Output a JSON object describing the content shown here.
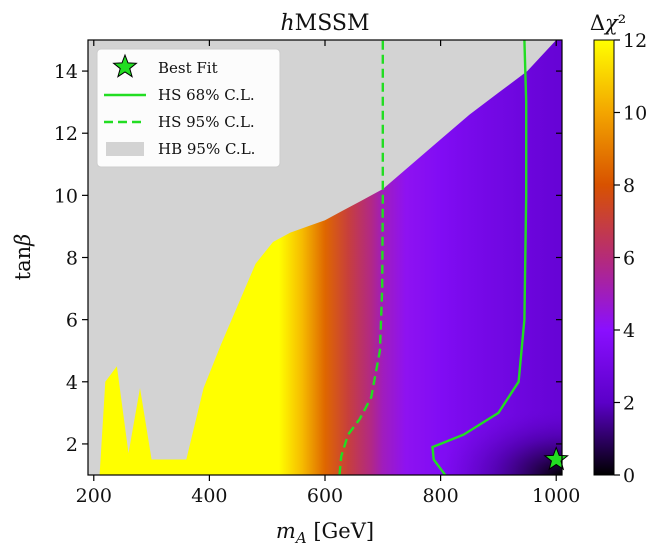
{
  "chart_data": {
    "type": "heatmap",
    "title": "hMSSM",
    "xlabel": "m_A [GeV]",
    "ylabel": "tanβ",
    "xlim": [
      190,
      1010
    ],
    "ylim": [
      1,
      15
    ],
    "x_ticks": [
      200,
      400,
      600,
      800,
      1000
    ],
    "y_ticks": [
      2,
      4,
      6,
      8,
      10,
      12,
      14
    ],
    "grid": false,
    "colorbar": {
      "label": "Δχ²",
      "range": [
        0,
        12
      ],
      "ticks": [
        0,
        2,
        4,
        6,
        8,
        10,
        12
      ],
      "colormap": "gnuplot",
      "colors": [
        "#000000",
        "#5b00c8",
        "#8a0fff",
        "#b52b78",
        "#d85200",
        "#f3a500",
        "#ffff00"
      ]
    },
    "delta_chi2_vs_mA": {
      "x": [
        200,
        300,
        450,
        520,
        560,
        600,
        640,
        680,
        700,
        740,
        800,
        860,
        920,
        960,
        1000
      ],
      "values": [
        12,
        12,
        12,
        12,
        10.5,
        8.5,
        7,
        5.8,
        5,
        4.2,
        3.6,
        3.2,
        2.9,
        2.7,
        2.5
      ]
    },
    "low_tanb_minimum": {
      "x": [
        800,
        850,
        900,
        950,
        1000
      ],
      "values_at_tanb_1": [
        2.6,
        1.6,
        0.8,
        0.3,
        0.0
      ]
    },
    "excluded_region_HB_95": {
      "label": "HB 95% C.L.",
      "boundary": {
        "x": [
          210,
          220,
          240,
          260,
          280,
          300,
          320,
          340,
          360,
          390,
          420,
          450,
          480,
          510,
          540,
          570,
          600,
          630,
          660,
          700,
          750,
          800,
          850,
          900,
          950,
          980,
          1000
        ],
        "tanb": [
          1.0,
          4.0,
          4.5,
          1.7,
          3.8,
          1.5,
          1.5,
          1.5,
          1.5,
          3.8,
          5.2,
          6.5,
          7.8,
          8.5,
          8.8,
          9.0,
          9.2,
          9.5,
          9.8,
          10.2,
          11.0,
          11.8,
          12.6,
          13.3,
          14.0,
          14.6,
          15.0
        ]
      }
    },
    "contours": [
      {
        "name": "HS 68% C.L.",
        "style": "solid",
        "color": "#22dd22",
        "x": [
          808,
          800,
          788,
          786,
          800,
          840,
          900,
          935,
          945,
          948,
          948,
          945
        ],
        "tanb": [
          1.0,
          1.2,
          1.5,
          1.9,
          2.0,
          2.3,
          3.0,
          4.0,
          6.0,
          10.0,
          13.0,
          15.0
        ]
      },
      {
        "name": "HS 95% C.L.",
        "style": "dashed",
        "color": "#22dd22",
        "x": [
          625,
          628,
          640,
          660,
          680,
          695,
          699,
          700,
          700
        ],
        "tanb": [
          1.0,
          1.6,
          2.3,
          2.8,
          3.5,
          5.0,
          7.0,
          10.0,
          15.0
        ]
      }
    ],
    "best_fit": {
      "name": "Best Fit",
      "x": 1000,
      "tanb": 1.5,
      "color": "#22dd22"
    },
    "legend": {
      "placement": "top-left",
      "entries": [
        "Best Fit",
        "HS 68% C.L.",
        "HS 95% C.L.",
        "HB 95% C.L."
      ]
    },
    "background_color": "#d3d3d3"
  }
}
